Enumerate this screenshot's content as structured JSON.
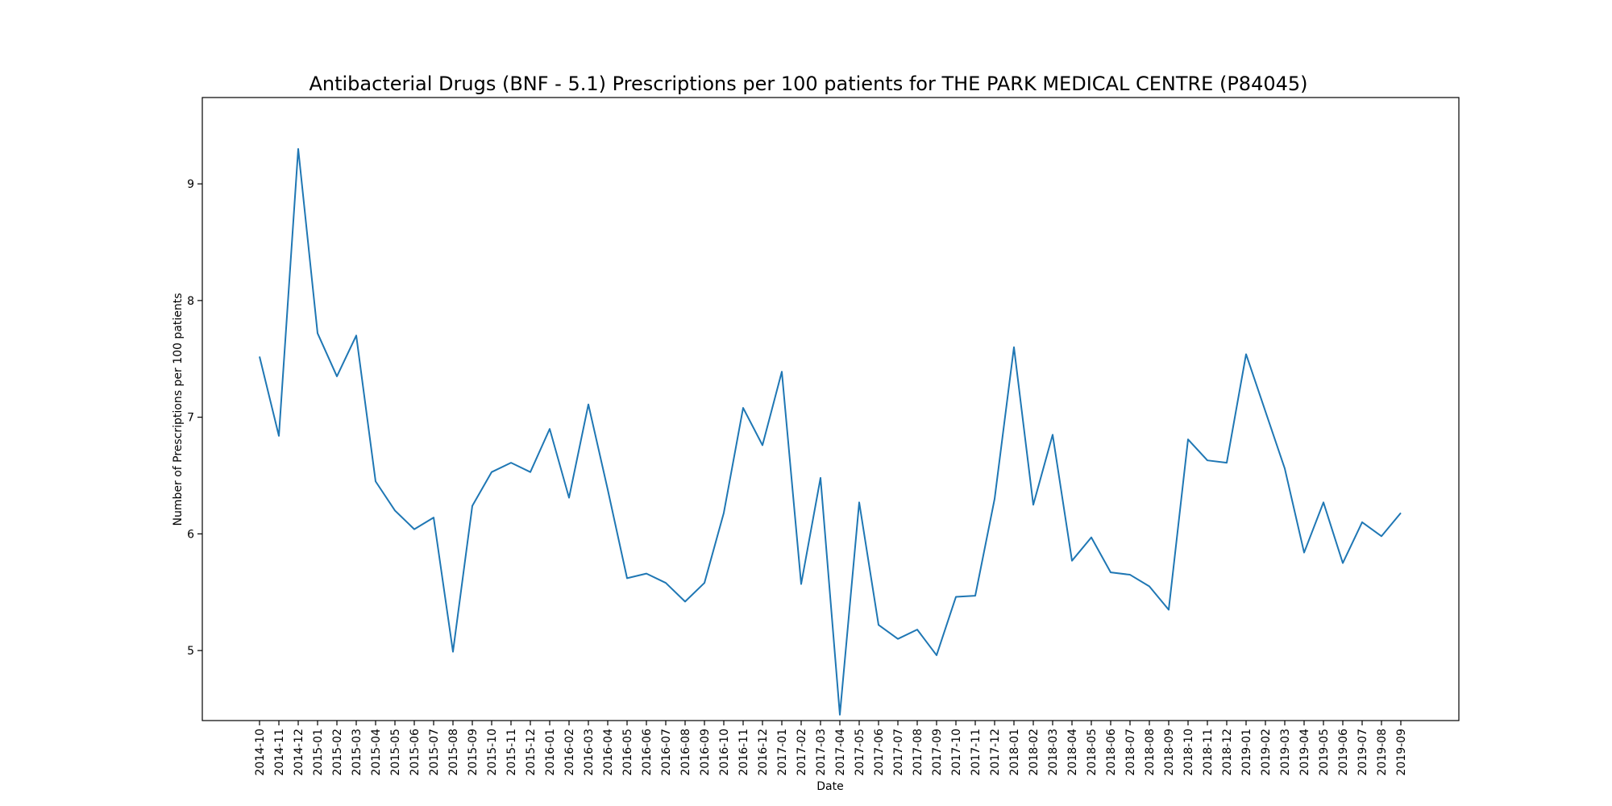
{
  "chart_data": {
    "type": "line",
    "title": "Antibacterial Drugs (BNF - 5.1) Prescriptions per 100 patients for THE PARK MEDICAL CENTRE (P84045)",
    "xlabel": "Date",
    "ylabel": "Number of Prescriptions per 100 patients",
    "categories": [
      "2014-10",
      "2014-11",
      "2014-12",
      "2015-01",
      "2015-02",
      "2015-03",
      "2015-04",
      "2015-05",
      "2015-06",
      "2015-07",
      "2015-08",
      "2015-09",
      "2015-10",
      "2015-11",
      "2015-12",
      "2016-01",
      "2016-02",
      "2016-03",
      "2016-04",
      "2016-05",
      "2016-06",
      "2016-07",
      "2016-08",
      "2016-09",
      "2016-10",
      "2016-11",
      "2016-12",
      "2017-01",
      "2017-02",
      "2017-03",
      "2017-04",
      "2017-05",
      "2017-06",
      "2017-07",
      "2017-08",
      "2017-09",
      "2017-10",
      "2017-11",
      "2017-12",
      "2018-01",
      "2018-02",
      "2018-03",
      "2018-04",
      "2018-05",
      "2018-06",
      "2018-07",
      "2018-08",
      "2018-09",
      "2018-10",
      "2018-11",
      "2018-12",
      "2019-01",
      "2019-02",
      "2019-03",
      "2019-04",
      "2019-05",
      "2019-06",
      "2019-07",
      "2019-08",
      "2019-09"
    ],
    "series": [
      {
        "values": [
          7.52,
          6.84,
          9.3,
          7.72,
          7.35,
          7.7,
          6.45,
          6.2,
          6.04,
          6.14,
          4.99,
          6.24,
          6.53,
          6.61,
          6.53,
          6.9,
          6.31,
          7.11,
          6.38,
          5.62,
          5.66,
          5.58,
          5.42,
          5.58,
          6.18,
          7.08,
          6.76,
          7.39,
          5.57,
          6.48,
          4.45,
          6.27,
          5.22,
          5.1,
          5.18,
          4.96,
          5.46,
          5.47,
          6.3,
          7.6,
          6.25,
          6.85,
          5.77,
          5.97,
          5.67,
          5.65,
          5.55,
          5.35,
          6.81,
          6.63,
          6.61,
          7.54,
          7.05,
          6.56,
          5.84,
          6.27,
          5.75,
          6.1,
          5.98,
          6.18
        ],
        "color": "#1f77b4"
      }
    ],
    "yticks": [
      5,
      6,
      7,
      8,
      9
    ],
    "ylim": [
      4.4,
      9.74
    ],
    "grid": false,
    "legend": "none"
  }
}
